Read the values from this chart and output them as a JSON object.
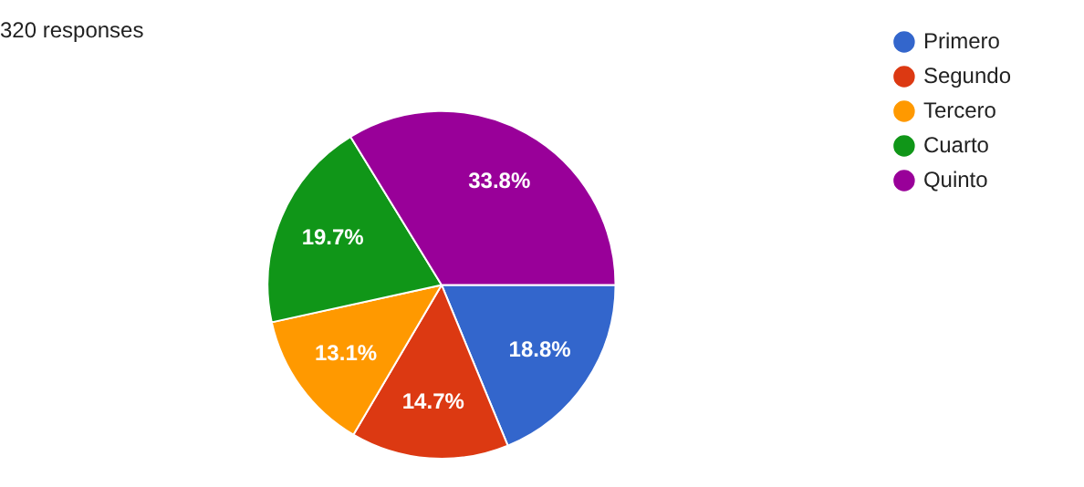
{
  "chart_data": {
    "type": "pie",
    "title": "320 responses",
    "categories": [
      "Primero",
      "Segundo",
      "Tercero",
      "Cuarto",
      "Quinto"
    ],
    "values": [
      18.8,
      14.7,
      13.1,
      19.7,
      33.8
    ],
    "colors": [
      "#3366cc",
      "#dc3912",
      "#ff9900",
      "#109618",
      "#990099"
    ],
    "value_labels": [
      "18.8%",
      "14.7%",
      "13.1%",
      "19.7%",
      "33.8%"
    ],
    "legend": "right"
  }
}
